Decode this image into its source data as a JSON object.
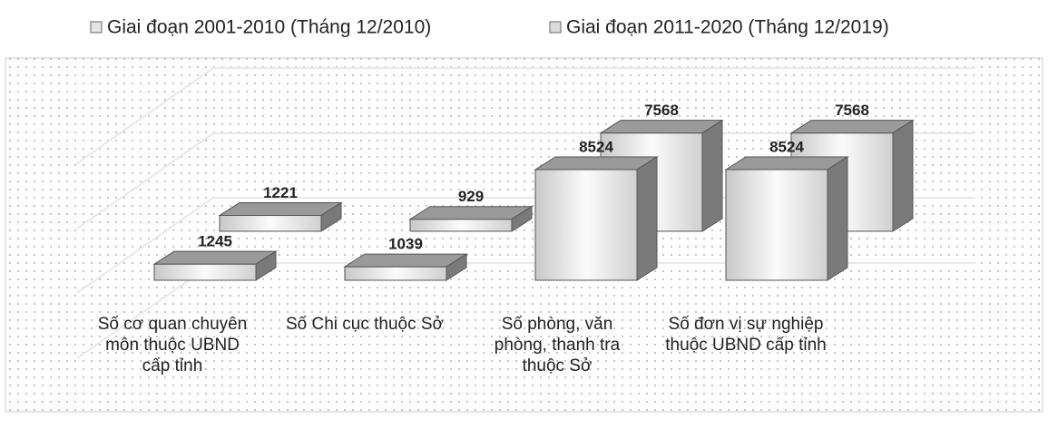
{
  "chart_data": {
    "type": "bar3d",
    "categories": [
      "Số cơ quan chuyên môn thuộc UBND cấp tỉnh",
      "Số Chi cục thuộc Sở",
      "Số phòng, văn phòng, thanh tra thuộc Sở",
      "Số đơn vị sự nghiệp thuộc UBND cấp tỉnh"
    ],
    "series": [
      {
        "name": "Giai đoạn 2001-2010 (Tháng 12/2010)",
        "color": "#e6e6e6",
        "values": [
          1245,
          1039,
          8524,
          8524
        ]
      },
      {
        "name": "Giai đoạn 2011-2020 (Tháng 12/2019)",
        "color": "#dcdcdc",
        "values": [
          1221,
          929,
          7568,
          7568
        ]
      }
    ],
    "legend": "top"
  }
}
